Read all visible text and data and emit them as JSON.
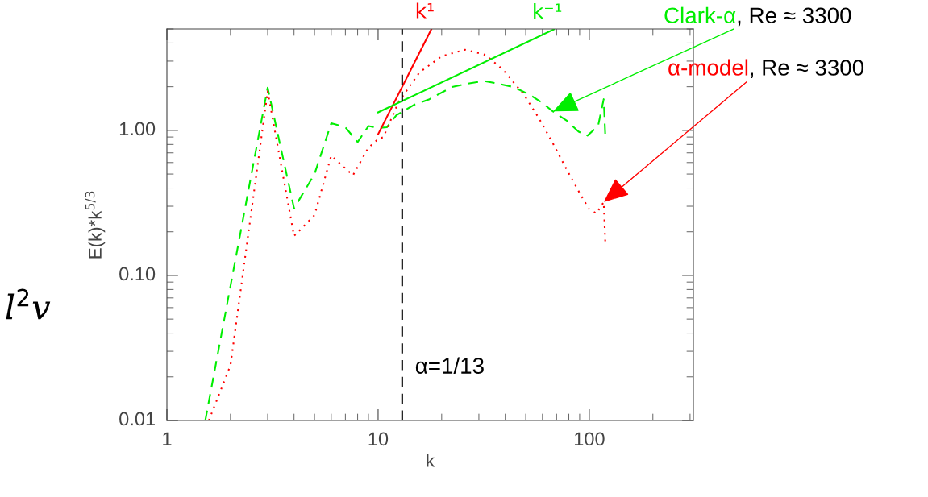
{
  "chart_data": {
    "type": "line",
    "xlabel": "k",
    "ylabel": "E(k)*k$^{5/3}$",
    "log": "xy",
    "grid": false,
    "legend": false,
    "xlim": [
      1,
      311
    ],
    "ylim": [
      0.01,
      5
    ],
    "xticks": [
      1,
      10,
      100
    ],
    "yticks": [
      {
        "value": 0.01,
        "label": "0.01"
      },
      {
        "value": 0.1,
        "label": "0.10"
      },
      {
        "value": 1,
        "label": "1.00"
      }
    ],
    "series": [
      {
        "name": "Clark-α",
        "color": "#00ee00",
        "line_style": "dashed",
        "x": [
          1.52,
          3,
          4,
          5,
          6,
          7,
          8,
          9,
          10,
          11,
          12.2,
          14.8,
          17.5,
          22.4,
          26.5,
          31.8,
          37,
          43.7,
          51.5,
          59,
          67.3,
          78,
          89,
          98,
          110,
          117,
          119
        ],
        "values": [
          0.01,
          1.97,
          0.29,
          0.5,
          1.12,
          1.05,
          0.83,
          1.07,
          1.04,
          1.05,
          1.27,
          1.5,
          1.64,
          1.99,
          2.1,
          2.19,
          2.1,
          1.99,
          1.78,
          1.57,
          1.35,
          1.17,
          0.98,
          0.92,
          1.07,
          1.64,
          0.93
        ]
      },
      {
        "name": "α-model",
        "color": "#ff0000",
        "line_style": "dotted",
        "x": [
          1.58,
          2,
          3,
          4,
          5,
          6,
          7.6,
          9,
          10,
          10.6,
          12.5,
          15.7,
          20,
          25.8,
          32.3,
          39,
          48.8,
          57.6,
          68,
          78,
          90,
          100,
          108,
          117,
          119
        ],
        "values": [
          0.01,
          0.024,
          1.86,
          0.187,
          0.26,
          0.67,
          0.49,
          0.76,
          0.87,
          0.9,
          1.57,
          2.51,
          3.24,
          3.6,
          3.31,
          2.62,
          1.78,
          1.22,
          0.79,
          0.54,
          0.37,
          0.285,
          0.268,
          0.32,
          0.171
        ]
      },
      {
        "name": "k¹",
        "color": "#ff0000",
        "line_style": "solid",
        "x": [
          10,
          17.9
        ],
        "values": [
          0.94,
          5
        ]
      },
      {
        "name": "k⁻¹",
        "color": "#00ee00",
        "line_style": "solid",
        "x": [
          10,
          68
        ],
        "values": [
          1.33,
          4.97
        ]
      }
    ],
    "ref_lines": [
      {
        "axis": "x",
        "value": 13,
        "label": "α=1/13",
        "color": "#000000",
        "line_style": "dashed"
      }
    ],
    "annotations": [
      {
        "text": ", Re ≈ 3300",
        "x": 67.3,
        "y": 1.35
      },
      {
        "text": ", Re ≈ 3300",
        "x": 117,
        "y": 0.32
      },
      "l$^{2}$v"
    ]
  }
}
